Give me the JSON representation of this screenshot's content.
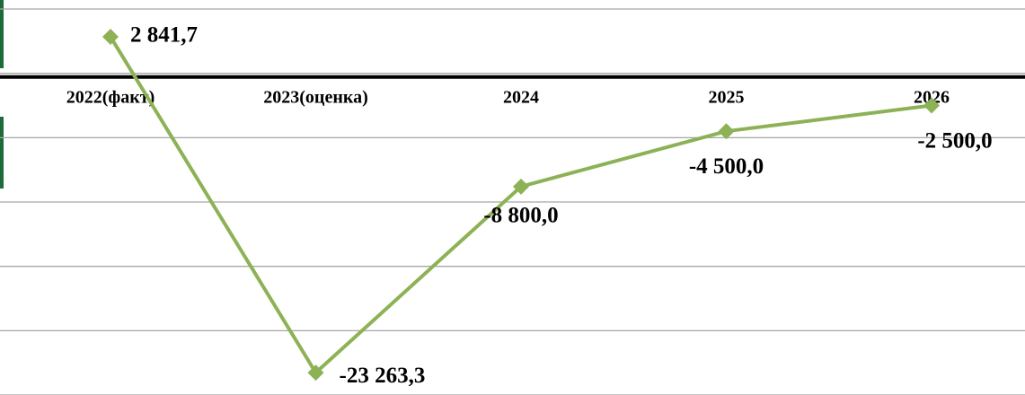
{
  "chart_data": {
    "type": "line",
    "categories": [
      "2022(факт)",
      "2023(оценка)",
      "2024",
      "2025",
      "2026"
    ],
    "series": [
      {
        "color": "#8db255",
        "values": [
          2841.7,
          -23263.3,
          -8800,
          -4500,
          -2500
        ],
        "value_labels": [
          "2 841,7",
          "-23 263,3",
          "-8 800,0",
          "-4 500,0",
          "-2 500,0"
        ]
      }
    ],
    "ylim": [
      -25000,
      5700
    ],
    "yticks": [
      5000,
      0,
      -5000,
      -10000,
      -15000,
      -20000,
      -25000
    ],
    "grid": true
  }
}
